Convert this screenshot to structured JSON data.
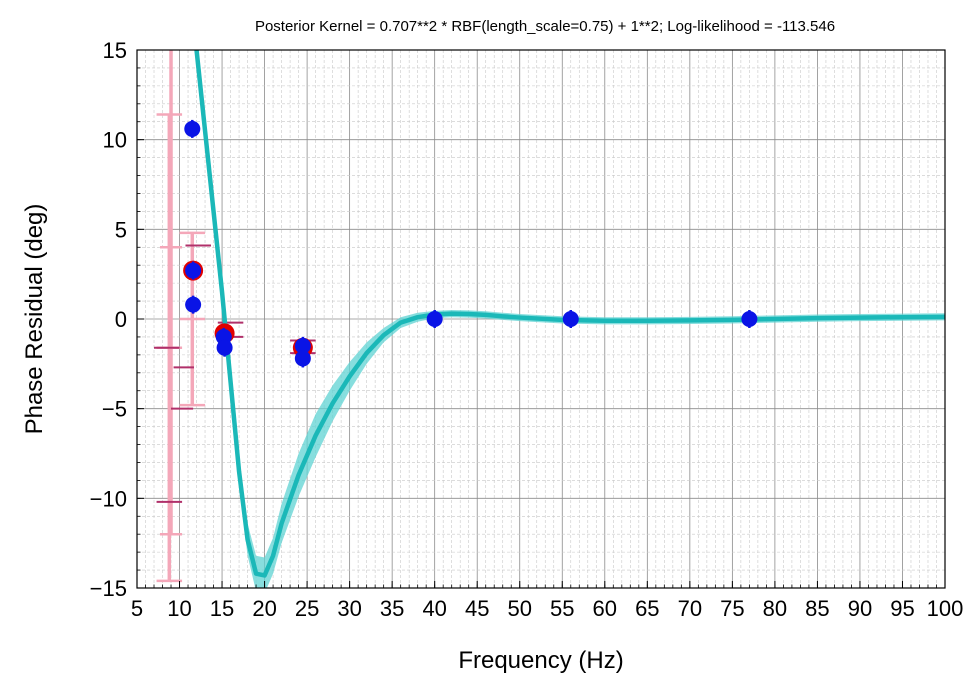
{
  "chart_data": {
    "type": "scatter",
    "title": "Posterior Kernel = 0.707**2 * RBF(length_scale=0.75) + 1**2; Log-likelihood = -113.546",
    "xlabel": "Frequency (Hz)",
    "ylabel": "Phase Residual (deg)",
    "xlim": [
      5,
      100
    ],
    "ylim": [
      -15,
      15
    ],
    "x_ticks": [
      5,
      10,
      15,
      20,
      25,
      30,
      35,
      40,
      45,
      50,
      55,
      60,
      65,
      70,
      75,
      80,
      85,
      90,
      95,
      100
    ],
    "x_tick_labels": [
      "5",
      "10",
      "15",
      "20",
      "25",
      "30",
      "35",
      "40",
      "45",
      "50",
      "55",
      "60",
      "65",
      "70",
      "75",
      "80",
      "85",
      "90",
      "95",
      "100"
    ],
    "y_ticks": [
      -15,
      -10,
      -5,
      0,
      5,
      10,
      15
    ],
    "y_tick_labels": [
      "−15",
      "−10",
      "−5",
      "0",
      "5",
      "10",
      "15"
    ],
    "grid": true,
    "legend": "none",
    "colors": {
      "fit_line": "#1bb8b8",
      "fit_band": "#5fd3d3",
      "points": "#0a14e6",
      "highlight_ring": "#e00000",
      "errorbar_pink": "#f4a7b9",
      "errorbar_magenta": "#b0306a",
      "grid_major": "#8c8c8c",
      "grid_minor": "#c8c8c8"
    },
    "fit_curve": {
      "x": [
        12.0,
        13,
        14,
        15,
        16,
        17,
        18,
        19,
        20,
        21,
        22,
        24,
        26,
        28,
        30,
        32,
        34,
        36,
        38,
        40,
        42,
        44,
        46,
        48,
        50,
        55,
        60,
        65,
        70,
        75,
        80,
        85,
        90,
        95,
        100
      ],
      "y": [
        15.0,
        10.5,
        6.0,
        1.5,
        -3.5,
        -8.5,
        -12.3,
        -14.2,
        -14.3,
        -13.2,
        -11.4,
        -8.7,
        -6.5,
        -4.7,
        -3.2,
        -1.9,
        -0.9,
        -0.2,
        0.1,
        0.25,
        0.3,
        0.28,
        0.23,
        0.15,
        0.08,
        -0.05,
        -0.1,
        -0.1,
        -0.08,
        -0.05,
        0.0,
        0.05,
        0.08,
        0.1,
        0.12
      ],
      "band_halfwidth": [
        0.6,
        0.6,
        0.6,
        0.6,
        0.7,
        0.8,
        0.9,
        1.0,
        1.0,
        1.0,
        1.1,
        1.2,
        1.2,
        1.0,
        0.8,
        0.6,
        0.4,
        0.3,
        0.25,
        0.2,
        0.2,
        0.2,
        0.2,
        0.2,
        0.2,
        0.2,
        0.2,
        0.2,
        0.2,
        0.2,
        0.2,
        0.2,
        0.2,
        0.2,
        0.2
      ]
    },
    "points": [
      {
        "x": 11.5,
        "y": 10.6
      },
      {
        "x": 11.6,
        "y": 2.7
      },
      {
        "x": 11.6,
        "y": 0.8
      },
      {
        "x": 15.2,
        "y": -1.0
      },
      {
        "x": 15.3,
        "y": -1.6
      },
      {
        "x": 24.5,
        "y": -1.5
      },
      {
        "x": 24.5,
        "y": -2.2
      },
      {
        "x": 40.0,
        "y": 0.0
      },
      {
        "x": 56.0,
        "y": 0.0
      },
      {
        "x": 77.0,
        "y": 0.0
      }
    ],
    "highlighted_points": [
      {
        "x": 11.6,
        "y": 2.7
      },
      {
        "x": 15.3,
        "y": -0.8
      },
      {
        "x": 24.5,
        "y": -1.6
      }
    ],
    "pink_errorbars": [
      {
        "x": 9.0,
        "y": 4.0,
        "xerr": 1.3,
        "yerr": 16.0
      },
      {
        "x": 11.5,
        "y": 0.0,
        "xerr": 1.5,
        "yerr": 4.8
      },
      {
        "x": 8.8,
        "y": -1.6,
        "xerr": 1.5,
        "yerr": 13.0
      }
    ],
    "magenta_hbars": [
      {
        "x": 12.2,
        "y": 4.1,
        "xerr": 1.5
      },
      {
        "x": 16.0,
        "y": -0.2,
        "xerr": 1.5
      },
      {
        "x": 24.5,
        "y": -1.2,
        "xerr": 1.5
      },
      {
        "x": 24.5,
        "y": -1.9,
        "xerr": 1.5
      },
      {
        "x": 16.0,
        "y": -1.0,
        "xerr": 1.5
      },
      {
        "x": 10.5,
        "y": -2.7,
        "xerr": 1.2
      },
      {
        "x": 10.3,
        "y": -5.0,
        "xerr": 1.3
      },
      {
        "x": 8.5,
        "y": -1.6,
        "xerr": 1.5
      },
      {
        "x": 8.8,
        "y": -10.2,
        "xerr": 1.5
      }
    ]
  }
}
